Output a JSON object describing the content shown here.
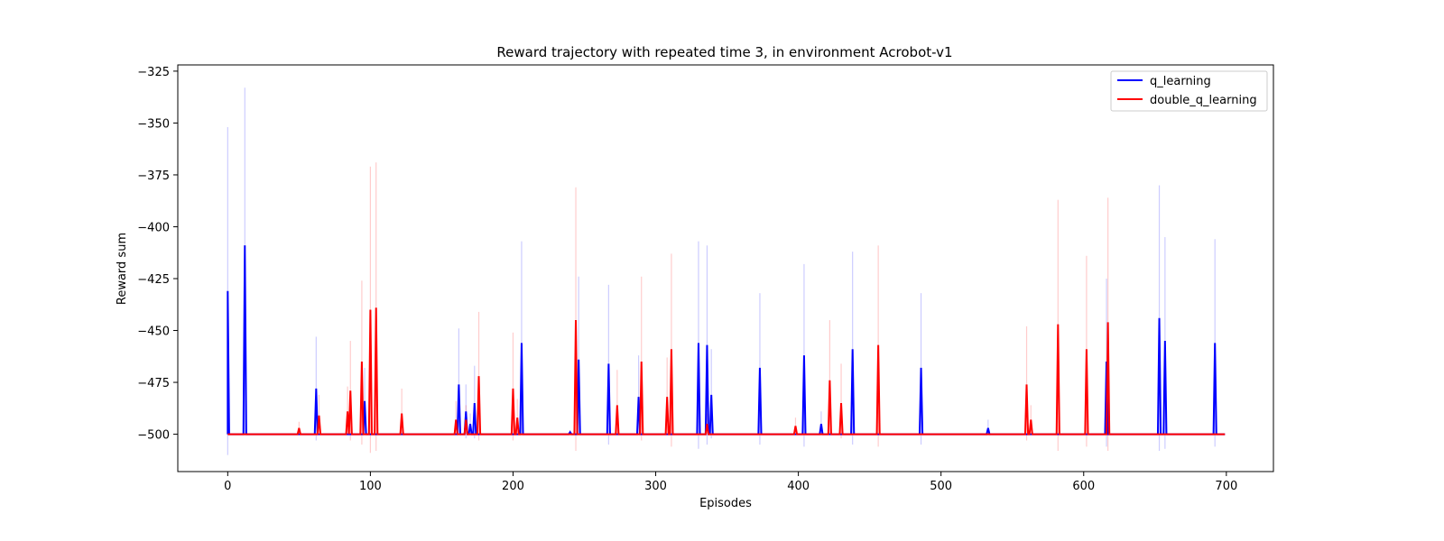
{
  "chart_data": {
    "type": "line",
    "title": "Reward trajectory with repeated time 3, in environment Acrobot-v1",
    "xlabel": "Episodes",
    "ylabel": "Reward sum",
    "xlim": [
      -35,
      733
    ],
    "ylim": [
      -518,
      -322
    ],
    "x_ticks": [
      0,
      100,
      200,
      300,
      400,
      500,
      600,
      700
    ],
    "x_tick_labels": [
      "0",
      "100",
      "200",
      "300",
      "400",
      "500",
      "600",
      "700"
    ],
    "y_ticks": [
      -325,
      -350,
      -375,
      -400,
      -425,
      -450,
      -475,
      -500
    ],
    "y_tick_labels": [
      "−325",
      "−350",
      "−375",
      "−400",
      "−425",
      "−450",
      "−475",
      "−500"
    ],
    "grid": false,
    "legend_position": "top-right",
    "baseline": -500,
    "x_max": 699,
    "series": [
      {
        "name": "q_learning",
        "color": "#0000ff",
        "spikes": [
          {
            "x": 0,
            "mean": -431,
            "lo": -510,
            "hi": -352
          },
          {
            "x": 12,
            "mean": -409,
            "lo": -500,
            "hi": -333
          },
          {
            "x": 62,
            "mean": -478,
            "lo": -503,
            "hi": -453
          },
          {
            "x": 96,
            "mean": -484,
            "lo": -500,
            "hi": -468
          },
          {
            "x": 162,
            "mean": -476,
            "lo": -500,
            "hi": -449
          },
          {
            "x": 167,
            "mean": -489,
            "lo": -502,
            "hi": -476
          },
          {
            "x": 170,
            "mean": -495,
            "lo": -500,
            "hi": -490
          },
          {
            "x": 173,
            "mean": -485,
            "lo": -502,
            "hi": -467
          },
          {
            "x": 206,
            "mean": -456,
            "lo": -500,
            "hi": -407
          },
          {
            "x": 240,
            "mean": -499,
            "lo": -500,
            "hi": -498
          },
          {
            "x": 246,
            "mean": -464,
            "lo": -500,
            "hi": -424
          },
          {
            "x": 267,
            "mean": -466,
            "lo": -505,
            "hi": -428
          },
          {
            "x": 288,
            "mean": -482,
            "lo": -500,
            "hi": -462
          },
          {
            "x": 330,
            "mean": -456,
            "lo": -507,
            "hi": -407
          },
          {
            "x": 336,
            "mean": -457,
            "lo": -505,
            "hi": -409
          },
          {
            "x": 339,
            "mean": -481,
            "lo": -502,
            "hi": -459
          },
          {
            "x": 373,
            "mean": -468,
            "lo": -505,
            "hi": -432
          },
          {
            "x": 404,
            "mean": -462,
            "lo": -506,
            "hi": -418
          },
          {
            "x": 416,
            "mean": -495,
            "lo": -500,
            "hi": -489
          },
          {
            "x": 438,
            "mean": -459,
            "lo": -505,
            "hi": -412
          },
          {
            "x": 486,
            "mean": -468,
            "lo": -505,
            "hi": -432
          },
          {
            "x": 533,
            "mean": -497,
            "lo": -500,
            "hi": -493
          },
          {
            "x": 616,
            "mean": -465,
            "lo": -506,
            "hi": -425
          },
          {
            "x": 653,
            "mean": -444,
            "lo": -508,
            "hi": -380
          },
          {
            "x": 657,
            "mean": -455,
            "lo": -507,
            "hi": -405
          },
          {
            "x": 692,
            "mean": -456,
            "lo": -506,
            "hi": -406
          }
        ]
      },
      {
        "name": "double_q_learning",
        "color": "#ff0000",
        "spikes": [
          {
            "x": 50,
            "mean": -497,
            "lo": -500,
            "hi": -494
          },
          {
            "x": 64,
            "mean": -491,
            "lo": -500,
            "hi": -481
          },
          {
            "x": 84,
            "mean": -489,
            "lo": -500,
            "hi": -477
          },
          {
            "x": 86,
            "mean": -479,
            "lo": -503,
            "hi": -455
          },
          {
            "x": 94,
            "mean": -465,
            "lo": -505,
            "hi": -426
          },
          {
            "x": 100,
            "mean": -440,
            "lo": -509,
            "hi": -371
          },
          {
            "x": 104,
            "mean": -439,
            "lo": -508,
            "hi": -369
          },
          {
            "x": 122,
            "mean": -490,
            "lo": -500,
            "hi": -478
          },
          {
            "x": 160,
            "mean": -493,
            "lo": -500,
            "hi": -484
          },
          {
            "x": 167,
            "mean": -493,
            "lo": -500,
            "hi": -486
          },
          {
            "x": 176,
            "mean": -472,
            "lo": -503,
            "hi": -441
          },
          {
            "x": 200,
            "mean": -478,
            "lo": -503,
            "hi": -451
          },
          {
            "x": 203,
            "mean": -492,
            "lo": -500,
            "hi": -483
          },
          {
            "x": 244,
            "mean": -445,
            "lo": -508,
            "hi": -381
          },
          {
            "x": 273,
            "mean": -486,
            "lo": -500,
            "hi": -469
          },
          {
            "x": 290,
            "mean": -465,
            "lo": -503,
            "hi": -424
          },
          {
            "x": 308,
            "mean": -482,
            "lo": -500,
            "hi": -463
          },
          {
            "x": 311,
            "mean": -459,
            "lo": -506,
            "hi": -413
          },
          {
            "x": 336,
            "mean": -495,
            "lo": -500,
            "hi": -490
          },
          {
            "x": 398,
            "mean": -496,
            "lo": -500,
            "hi": -492
          },
          {
            "x": 422,
            "mean": -474,
            "lo": -500,
            "hi": -445
          },
          {
            "x": 430,
            "mean": -485,
            "lo": -502,
            "hi": -466
          },
          {
            "x": 456,
            "mean": -457,
            "lo": -506,
            "hi": -409
          },
          {
            "x": 560,
            "mean": -476,
            "lo": -503,
            "hi": -448
          },
          {
            "x": 563,
            "mean": -493,
            "lo": -500,
            "hi": -486
          },
          {
            "x": 582,
            "mean": -447,
            "lo": -508,
            "hi": -387
          },
          {
            "x": 602,
            "mean": -459,
            "lo": -506,
            "hi": -414
          },
          {
            "x": 617,
            "mean": -446,
            "lo": -508,
            "hi": -386
          }
        ]
      }
    ]
  }
}
